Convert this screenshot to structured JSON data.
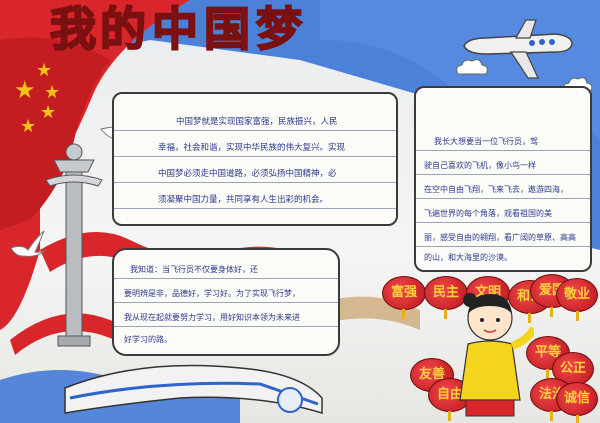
{
  "title": "我的中国梦",
  "title_chars": [
    "我",
    "的",
    "中",
    "国",
    "梦"
  ],
  "panels": {
    "left_top": {
      "lines": [
        "中国梦就是实现国家富强，民族振兴，人民",
        "幸福，社会和谐，实现中华民族的伟大复兴。实现",
        "中国梦必须走中国道路，必须弘扬中国精神，必",
        "须凝聚中国力量，共同享有人生出彩的机会。"
      ]
    },
    "right_top": {
      "lines": [
        "我长大想要当一位飞行员，驾",
        "驶自己喜欢的飞机，像小鸟一样",
        "在空中自由飞翔，飞来飞去，遨游四海，",
        "飞遍世界的每个角落，观看祖国的美",
        "丽，感受自由的翱翔，看广阔的草原、高高",
        "的山，和大海里的沙漠。"
      ]
    },
    "left_bottom": {
      "lines": [
        "我知道：当飞行员不仅要身体好，还",
        "要明辨是非，品德好，学习好。为了实现飞行梦，",
        "我从现在起就要努力学习，用好知识本领为未来进",
        "好学习的路。"
      ]
    }
  },
  "lantern_words": [
    "富强",
    "民主",
    "文明",
    "和谐",
    "爱国",
    "敬业",
    "友善",
    "自由",
    "平等",
    "公正",
    "法治",
    "诚信"
  ],
  "colors": {
    "red": "#d8262b",
    "blue": "#2f64c9",
    "yellow": "#f6c21a",
    "ink": "#2d3a8c"
  },
  "icons": [
    "star-icon",
    "dove-icon",
    "airplane-icon",
    "cloud-icon",
    "huabiao-column-icon",
    "train-icon",
    "girl-figure-icon",
    "lantern-icon"
  ]
}
